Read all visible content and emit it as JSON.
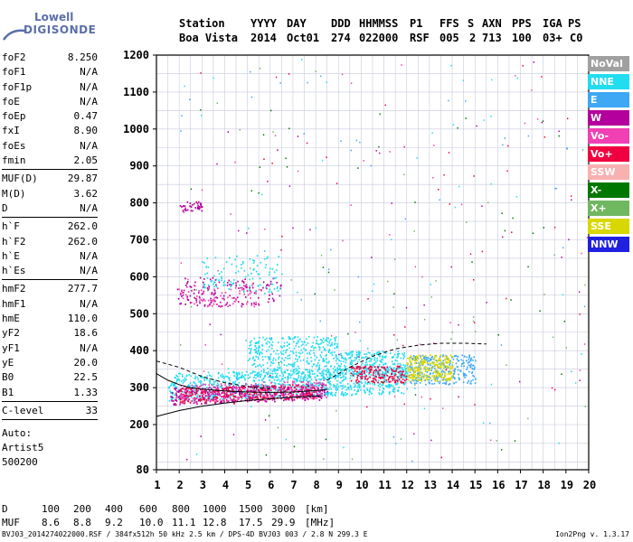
{
  "logo": {
    "line1": "Lowell",
    "line2": "DIGISONDE"
  },
  "header": {
    "row1": [
      "Station",
      "YYYY",
      "DAY",
      "DDD",
      "HHMMSS",
      "P1",
      "FFS",
      "S",
      "AXN",
      "PPS",
      "IGA",
      "PS"
    ],
    "row2": [
      "Boa Vista",
      "2014",
      "Oct01",
      "274",
      "022000",
      "RSF",
      "005",
      "2",
      "713",
      "100",
      "03+",
      "C0"
    ]
  },
  "params": [
    [
      {
        "k": "foF2",
        "v": "8.250"
      },
      {
        "k": "foF1",
        "v": "N/A"
      },
      {
        "k": "foF1p",
        "v": "N/A"
      },
      {
        "k": "foE",
        "v": "N/A"
      },
      {
        "k": "foEp",
        "v": "0.47"
      },
      {
        "k": "fxI",
        "v": "8.90"
      },
      {
        "k": "foEs",
        "v": "N/A"
      },
      {
        "k": "fmin",
        "v": "2.05"
      }
    ],
    [
      {
        "k": "MUF(D)",
        "v": "29.87"
      },
      {
        "k": "M(D)",
        "v": "3.62"
      },
      {
        "k": "D",
        "v": "N/A"
      }
    ],
    [
      {
        "k": "h`F",
        "v": "262.0"
      },
      {
        "k": "h`F2",
        "v": "262.0"
      },
      {
        "k": "h`E",
        "v": "N/A"
      },
      {
        "k": "h`Es",
        "v": "N/A"
      }
    ],
    [
      {
        "k": "hmF2",
        "v": "277.7"
      },
      {
        "k": "hmF1",
        "v": "N/A"
      },
      {
        "k": "hmE",
        "v": "110.0"
      },
      {
        "k": "yF2",
        "v": "18.6"
      },
      {
        "k": "yF1",
        "v": "N/A"
      },
      {
        "k": "yE",
        "v": "20.0"
      },
      {
        "k": "B0",
        "v": "22.5"
      },
      {
        "k": "B1",
        "v": "1.33"
      }
    ],
    [
      {
        "k": "C-level",
        "v": "33"
      }
    ]
  ],
  "auto": [
    "Auto:",
    "Artist5",
    "500200"
  ],
  "legend": [
    {
      "label": "NoVal",
      "color": "#a0a0a0"
    },
    {
      "label": "NNE",
      "color": "#22dcf0"
    },
    {
      "label": "E",
      "color": "#3ea8f4"
    },
    {
      "label": "W",
      "color": "#b4009c"
    },
    {
      "label": "Vo-",
      "color": "#f040b4"
    },
    {
      "label": "Vo+",
      "color": "#f00040"
    },
    {
      "label": "SSW",
      "color": "#f8b0b0"
    },
    {
      "label": "X-",
      "color": "#007800"
    },
    {
      "label": "X+",
      "color": "#70b860"
    },
    {
      "label": "SSE",
      "color": "#d8d800"
    },
    {
      "label": "NNW",
      "color": "#2020e0"
    }
  ],
  "bottom": {
    "d_label": "D",
    "d_values": [
      "100",
      "200",
      "400",
      "600",
      "800",
      "1000",
      "1500",
      "3000"
    ],
    "d_unit": "[km]",
    "muf_label": "MUF",
    "muf_values": [
      "8.6",
      "8.8",
      "9.2",
      "10.0",
      "11.1",
      "12.8",
      "17.5",
      "29.9"
    ],
    "muf_unit": "[MHz]"
  },
  "footer": {
    "left": "BVJ03_2014274022000.RSF / 384fx512h 50 kHz 2.5 km / DPS-4D BVJ03 003 / 2.8 N 299.3 E",
    "right": "Ion2Png v. 1.3.17"
  },
  "chart_data": {
    "type": "scatter",
    "xlim": [
      1,
      20
    ],
    "ylim": [
      80,
      1200
    ],
    "x_ticks": [
      1,
      2,
      3,
      4,
      5,
      6,
      7,
      8,
      9,
      10,
      11,
      12,
      13,
      14,
      15,
      16,
      17,
      18,
      19,
      20
    ],
    "y_ticks": [
      80,
      200,
      300,
      400,
      500,
      600,
      700,
      800,
      900,
      1000,
      1100,
      1200
    ],
    "grid": true,
    "clusters": [
      {
        "series": "NNE",
        "fmin": 1.5,
        "fmax": 12.0,
        "hmin": 265,
        "hmax": 340,
        "n": 900
      },
      {
        "series": "NNE",
        "fmin": 5.0,
        "fmax": 9.0,
        "hmin": 320,
        "hmax": 440,
        "n": 420
      },
      {
        "series": "NNE",
        "fmin": 9.0,
        "fmax": 12.0,
        "hmin": 330,
        "hmax": 400,
        "n": 260
      },
      {
        "series": "E",
        "fmin": 12.0,
        "fmax": 15.0,
        "hmin": 310,
        "hmax": 390,
        "n": 300
      },
      {
        "series": "SSE",
        "fmin": 12.0,
        "fmax": 14.0,
        "hmin": 320,
        "hmax": 390,
        "n": 260
      },
      {
        "series": "W",
        "fmin": 1.6,
        "fmax": 8.5,
        "hmin": 255,
        "hmax": 300,
        "n": 380
      },
      {
        "series": "Vo+",
        "fmin": 2.0,
        "fmax": 8.0,
        "hmin": 260,
        "hmax": 300,
        "n": 300
      },
      {
        "series": "Vo-",
        "fmin": 2.0,
        "fmax": 8.5,
        "hmin": 260,
        "hmax": 310,
        "n": 200
      },
      {
        "series": "Vo+",
        "fmin": 9.5,
        "fmax": 12.0,
        "hmin": 315,
        "hmax": 360,
        "n": 160
      },
      {
        "series": "W",
        "fmin": 1.9,
        "fmax": 6.5,
        "hmin": 520,
        "hmax": 600,
        "n": 140
      },
      {
        "series": "NNE",
        "fmin": 3.0,
        "fmax": 6.5,
        "hmin": 560,
        "hmax": 660,
        "n": 110
      },
      {
        "series": "Vo-",
        "fmin": 1.9,
        "fmax": 5.5,
        "hmin": 520,
        "hmax": 580,
        "n": 80
      },
      {
        "series": "W",
        "fmin": 2.0,
        "fmax": 3.0,
        "hmin": 780,
        "hmax": 805,
        "n": 40
      },
      {
        "series": "NoVal",
        "fmin": 2.0,
        "fmax": 20.0,
        "hmin": 90,
        "hmax": 1190,
        "n": 320
      }
    ],
    "curves": [
      {
        "style": "solid",
        "points": [
          [
            1,
            222
          ],
          [
            2,
            238
          ],
          [
            3,
            250
          ],
          [
            4,
            258
          ],
          [
            5,
            265
          ],
          [
            6,
            270
          ],
          [
            7,
            274
          ],
          [
            8,
            277
          ],
          [
            8.25,
            278
          ]
        ]
      },
      {
        "style": "solid",
        "points": [
          [
            1,
            338
          ],
          [
            1.5,
            320
          ],
          [
            2,
            308
          ],
          [
            2.5,
            300
          ],
          [
            3,
            296
          ],
          [
            4,
            291
          ],
          [
            5,
            288
          ],
          [
            6,
            287
          ],
          [
            7,
            288
          ],
          [
            8,
            292
          ],
          [
            8.5,
            295
          ]
        ]
      },
      {
        "style": "dashed",
        "points": [
          [
            1,
            372
          ],
          [
            2,
            355
          ],
          [
            3,
            330
          ],
          [
            4,
            313
          ],
          [
            5,
            303
          ],
          [
            6,
            297
          ]
        ]
      },
      {
        "style": "dashed",
        "points": [
          [
            8.5,
            320
          ],
          [
            9.5,
            355
          ],
          [
            10.5,
            385
          ],
          [
            11.5,
            405
          ],
          [
            12.5,
            415
          ],
          [
            13.5,
            420
          ],
          [
            14.5,
            420
          ],
          [
            15.5,
            418
          ]
        ]
      }
    ]
  }
}
